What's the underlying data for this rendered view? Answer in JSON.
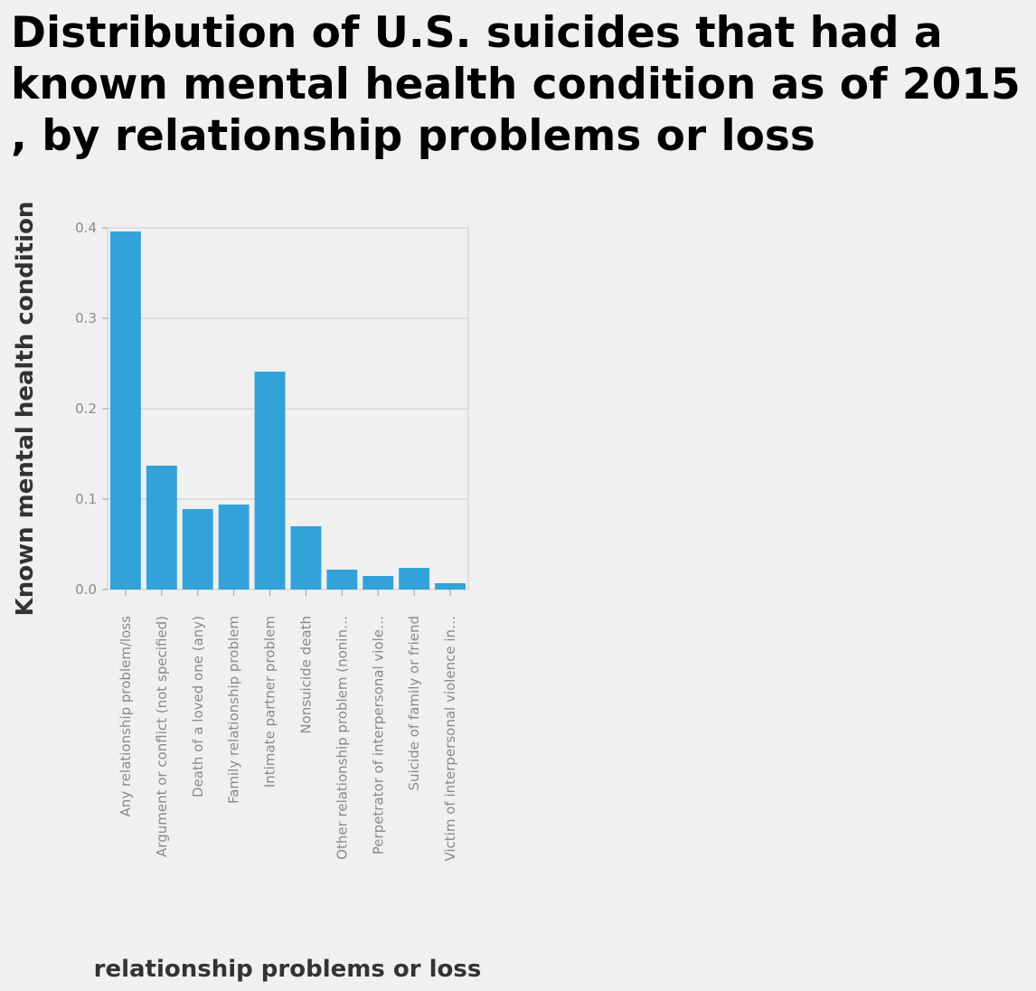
{
  "chart_data": {
    "type": "bar",
    "title": "Distribution of U.S. suicides that had a known mental health condition as of 2015 , by relationship problems or loss",
    "xlabel": "relationship problems or loss",
    "ylabel": "Known mental health condition",
    "ylim": [
      0,
      0.4
    ],
    "yticks": [
      "0.0",
      "0.1",
      "0.2",
      "0.3",
      "0.4"
    ],
    "grid": true,
    "bar_color": "#31a3da",
    "categories": [
      "Any relationship problem/loss",
      "Argument or conflict (not specified)",
      "Death of a loved one (any)",
      "Family relationship problem",
      "Intimate partner problem",
      "Nonsuicide death",
      "Other relationship problem (nonin…",
      "Perpetrator of interpersonal viole…",
      "Suicide of family or friend",
      "Victim of interpersonal violence in…"
    ],
    "values": [
      0.396,
      0.137,
      0.089,
      0.094,
      0.241,
      0.07,
      0.022,
      0.015,
      0.024,
      0.007
    ]
  }
}
